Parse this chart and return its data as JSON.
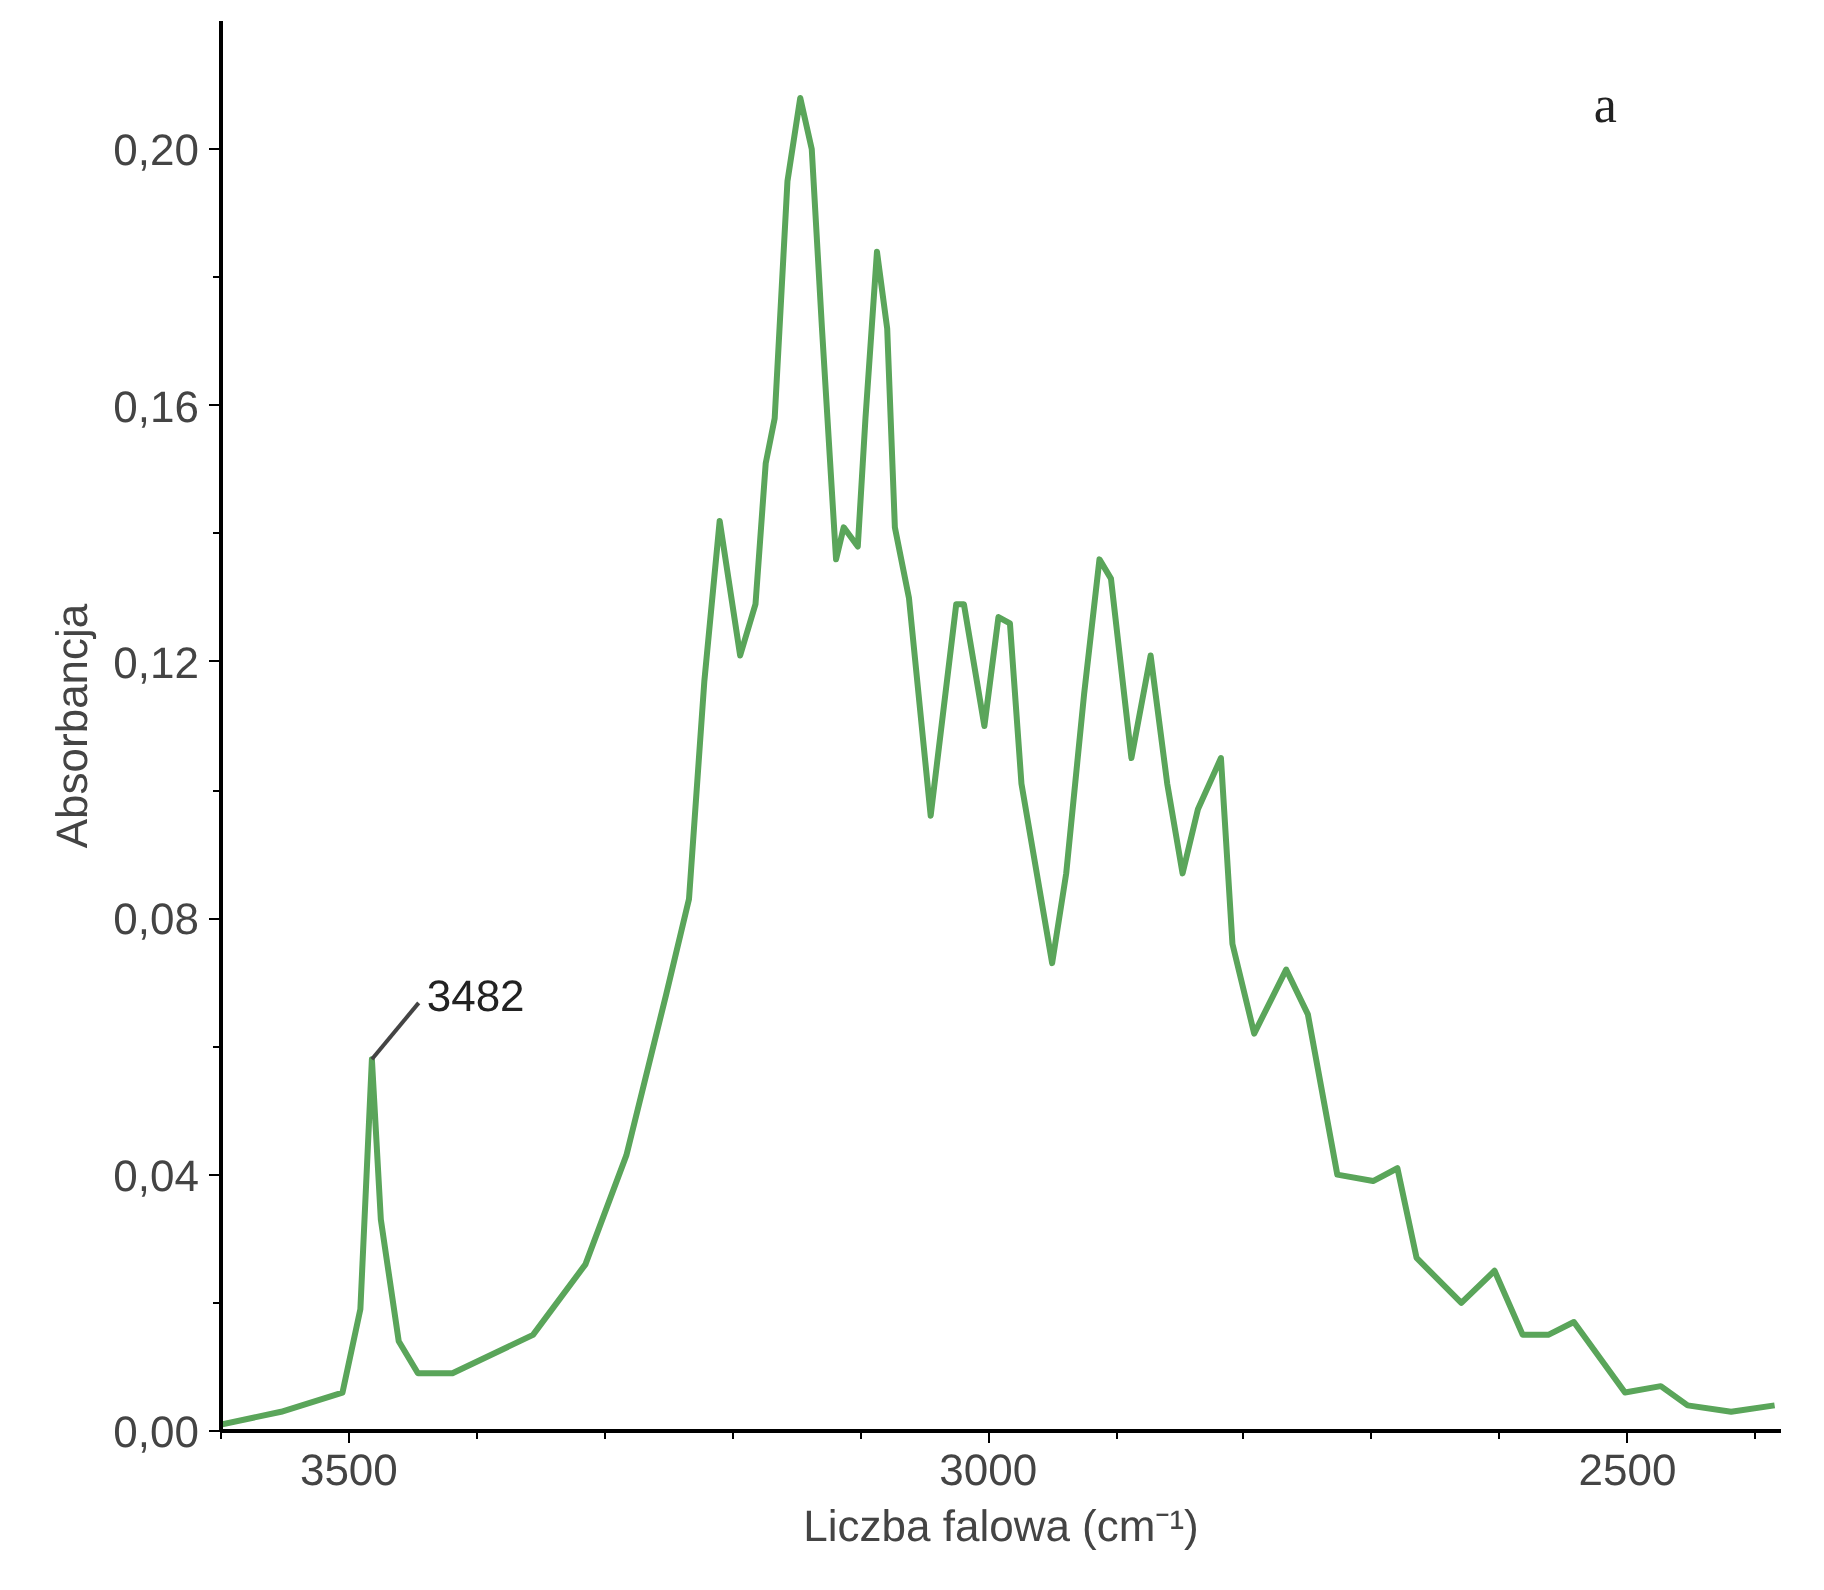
{
  "chart_data": {
    "type": "line",
    "xlabel": "Liczba falowa (cm⁻¹)",
    "ylabel": "Absorbancja",
    "x": [
      3600,
      3553,
      3505,
      3491,
      3482,
      3475,
      3461,
      3446,
      3419,
      3356,
      3315,
      3283,
      3252,
      3234,
      3222,
      3210,
      3194,
      3182,
      3174,
      3167,
      3157,
      3147,
      3138,
      3130,
      3119,
      3113,
      3102,
      3096,
      3087,
      3079,
      3073,
      3062,
      3045,
      3025,
      3019,
      3003,
      2992,
      2983,
      2974,
      2950,
      2939,
      2925,
      2913,
      2904,
      2888,
      2873,
      2860,
      2848,
      2836,
      2818,
      2809,
      2792,
      2767,
      2750,
      2727,
      2699,
      2680,
      2665,
      2630,
      2604,
      2582,
      2562,
      2542,
      2502,
      2474,
      2453,
      2419,
      2385
    ],
    "series": [
      {
        "color": "#5aa55a",
        "values": [
          0.001,
          0.003,
          0.006,
          0.019,
          0.058,
          0.033,
          0.014,
          0.009,
          0.009,
          0.015,
          0.026,
          0.043,
          0.068,
          0.083,
          0.117,
          0.142,
          0.121,
          0.129,
          0.151,
          0.158,
          0.195,
          0.208,
          0.2,
          0.172,
          0.136,
          0.141,
          0.138,
          0.158,
          0.184,
          0.172,
          0.141,
          0.13,
          0.096,
          0.129,
          0.129,
          0.11,
          0.127,
          0.126,
          0.101,
          0.073,
          0.087,
          0.115,
          0.136,
          0.133,
          0.105,
          0.121,
          0.101,
          0.087,
          0.097,
          0.105,
          0.076,
          0.062,
          0.072,
          0.065,
          0.04,
          0.039,
          0.041,
          0.027,
          0.02,
          0.025,
          0.015,
          0.015,
          0.017,
          0.006,
          0.007,
          0.004,
          0.003,
          0.004
        ]
      }
    ],
    "xlim": [
      3600,
      2380
    ],
    "xticks": [
      {
        "value": 3600,
        "label": null
      },
      3500,
      {
        "value": 3400,
        "label": null
      },
      {
        "value": 3300,
        "label": null
      },
      {
        "value": 3200,
        "label": null
      },
      {
        "value": 3100,
        "label": null
      },
      3000,
      {
        "value": 2900,
        "label": null
      },
      {
        "value": 2800,
        "label": null
      },
      {
        "value": 2700,
        "label": null
      },
      {
        "value": 2600,
        "label": null
      },
      2500,
      {
        "value": 2400,
        "label": null
      }
    ],
    "ylim": [
      0,
      0.22
    ],
    "yticks": [
      {
        "value": 0,
        "label": "0,00"
      },
      {
        "value": 0.02,
        "label": null
      },
      {
        "value": 0.04,
        "label": "0,04"
      },
      {
        "value": 0.06,
        "label": null
      },
      {
        "value": 0.08,
        "label": "0,08"
      },
      {
        "value": 0.1,
        "label": null
      },
      {
        "value": 0.12,
        "label": "0,12"
      },
      {
        "value": 0.14,
        "label": null
      },
      {
        "value": 0.16,
        "label": "0,16"
      },
      {
        "value": 0.18,
        "label": null
      },
      {
        "value": 0.2,
        "label": "0,20"
      }
    ],
    "annotations": [
      {
        "text": "3482",
        "x": 3482,
        "y": 0.058
      },
      "a"
    ],
    "marker": "none",
    "line_style": "solid"
  }
}
